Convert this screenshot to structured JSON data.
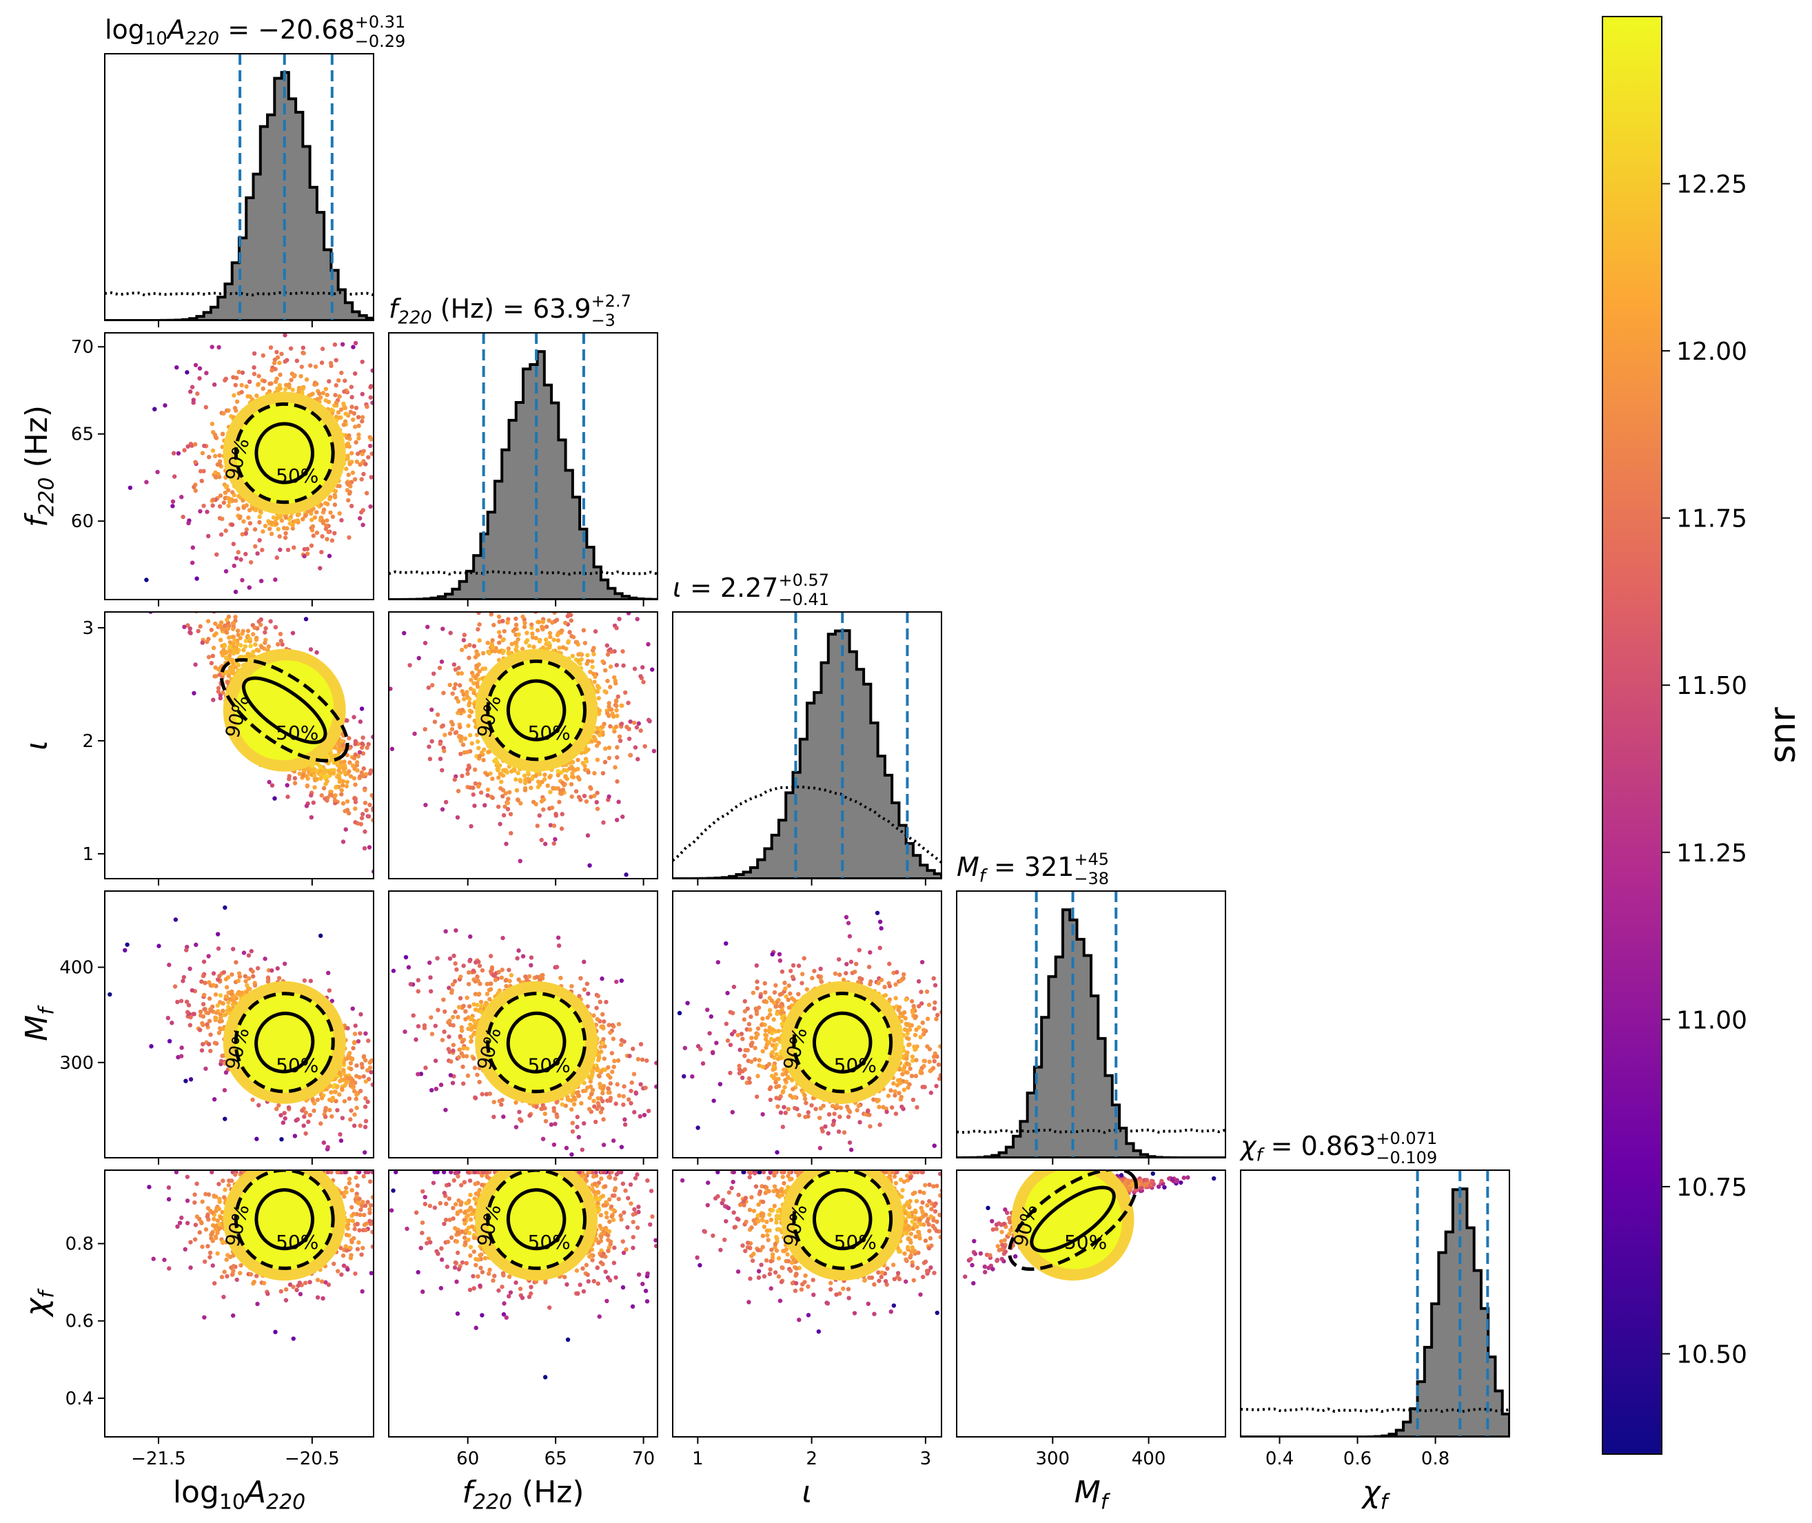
{
  "figure": {
    "colorbar": {
      "label": "snr",
      "range": [
        10.35,
        12.5
      ],
      "ticks": [
        "10.50",
        "10.75",
        "11.00",
        "11.25",
        "11.50",
        "11.75",
        "12.00",
        "12.25"
      ],
      "colormap": "plasma",
      "colors": [
        "#0d0887",
        "#6a00a8",
        "#b12a90",
        "#e16462",
        "#fca636",
        "#f0f921"
      ]
    },
    "colors": {
      "histogram_fill": "#808080",
      "quantile_line": "#1f77b4",
      "contour": "#000000",
      "prior": "#000000"
    }
  },
  "chart_data": {
    "type": "scatter",
    "subtype": "corner-plot",
    "parameters": [
      {
        "name": "log10A220",
        "label_base": "log",
        "label_sub": "10",
        "label_var": "A",
        "label_var_sub": "220",
        "label_unit": "",
        "title_value": "−20.68",
        "title_plus": "+0.31",
        "title_minus": "−0.29",
        "median": -20.68,
        "q_low": -20.97,
        "q_high": -20.37,
        "range": [
          -21.85,
          -20.1
        ],
        "ticks": [
          -21.5,
          -20.5
        ],
        "tick_labels": [
          "−21.5",
          "−20.5"
        ]
      },
      {
        "name": "f220",
        "label_base": "",
        "label_sub": "",
        "label_var": "f",
        "label_var_sub": "220",
        "label_unit": " (Hz)",
        "title_value": "63.9",
        "title_plus": "+2.7",
        "title_minus": "−3",
        "median": 63.9,
        "q_low": 60.9,
        "q_high": 66.6,
        "range": [
          55.5,
          70.8
        ],
        "ticks": [
          60,
          65,
          70
        ],
        "tick_labels": [
          "60",
          "65",
          "70"
        ]
      },
      {
        "name": "iota",
        "label_base": "",
        "label_sub": "",
        "label_var": "ι",
        "label_var_sub": "",
        "label_unit": "",
        "title_value": "2.27",
        "title_plus": "+0.57",
        "title_minus": "−0.41",
        "median": 2.27,
        "q_low": 1.86,
        "q_high": 2.84,
        "range": [
          0.78,
          3.14
        ],
        "ticks": [
          1,
          2,
          3
        ],
        "tick_labels": [
          "1",
          "2",
          "3"
        ]
      },
      {
        "name": "Mf",
        "label_base": "",
        "label_sub": "",
        "label_var": "M",
        "label_var_sub": "f",
        "label_unit": "",
        "title_value": "321",
        "title_plus": "+45",
        "title_minus": "−38",
        "median": 321,
        "q_low": 283,
        "q_high": 366,
        "range": [
          200,
          480
        ],
        "ticks": [
          300,
          400
        ],
        "tick_labels": [
          "300",
          "400"
        ]
      },
      {
        "name": "chif",
        "label_base": "",
        "label_sub": "",
        "label_var": "χ",
        "label_var_sub": "f",
        "label_unit": "",
        "title_value": "0.863",
        "title_plus": "+0.071",
        "title_minus": "−0.109",
        "median": 0.863,
        "q_low": 0.754,
        "q_high": 0.934,
        "range": [
          0.3,
          0.99
        ],
        "ticks": [
          0.4,
          0.6,
          0.8
        ],
        "tick_labels": [
          "0.4",
          "0.6",
          "0.8"
        ]
      }
    ],
    "contour_labels": [
      "50%",
      "90%"
    ],
    "correlations": [
      {
        "pair": [
          "log10A220",
          "f220"
        ],
        "rho": 0.05
      },
      {
        "pair": [
          "log10A220",
          "iota"
        ],
        "rho": -0.8
      },
      {
        "pair": [
          "log10A220",
          "Mf"
        ],
        "rho": -0.55
      },
      {
        "pair": [
          "log10A220",
          "chif"
        ],
        "rho": 0.1
      },
      {
        "pair": [
          "f220",
          "iota"
        ],
        "rho": 0.0
      },
      {
        "pair": [
          "f220",
          "Mf"
        ],
        "rho": -0.3
      },
      {
        "pair": [
          "f220",
          "chif"
        ],
        "rho": 0.05
      },
      {
        "pair": [
          "iota",
          "Mf"
        ],
        "rho": 0.0
      },
      {
        "pair": [
          "iota",
          "chif"
        ],
        "rho": 0.0
      },
      {
        "pair": [
          "Mf",
          "chif"
        ],
        "rho": 0.9
      }
    ]
  }
}
